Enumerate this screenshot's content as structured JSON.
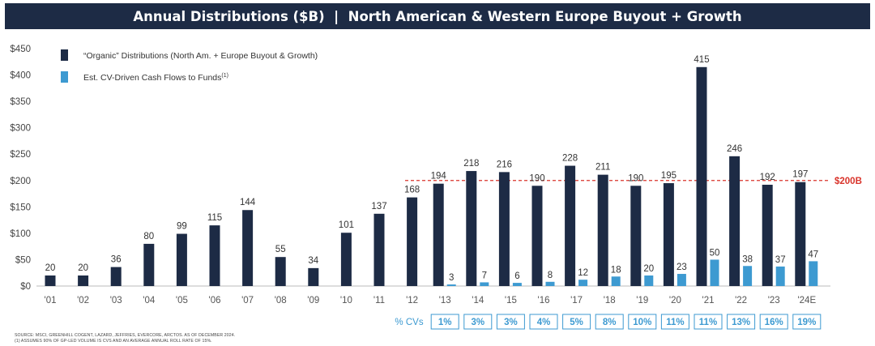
{
  "title": "Annual Distributions ($B)  |  North American & Western Europe Buyout + Growth",
  "colors": {
    "header_bg": "#1d2b45",
    "organic": "#1d2b45",
    "cv": "#3d9ad1",
    "threshold": "#d9342b",
    "cv_box": "#3d9ad1"
  },
  "chart_data": {
    "type": "bar",
    "categories": [
      "'01",
      "'02",
      "'03",
      "'04",
      "'05",
      "'06",
      "'07",
      "'08",
      "'09",
      "'10",
      "'11",
      "'12",
      "'13",
      "'14",
      "'15",
      "'16",
      "'17",
      "'18",
      "'19",
      "'20",
      "'21",
      "'22",
      "'23",
      "'24E"
    ],
    "series": [
      {
        "name": "“Organic” Distributions (North Am. + Europe Buyout & Growth)",
        "values": [
          20,
          20,
          36,
          80,
          99,
          115,
          144,
          55,
          34,
          101,
          137,
          168,
          194,
          218,
          216,
          190,
          228,
          211,
          190,
          195,
          415,
          246,
          192,
          197
        ]
      },
      {
        "name": "Est. CV-Driven Cash Flows to Funds",
        "name_superscript": "(1)",
        "values": [
          null,
          null,
          null,
          null,
          null,
          null,
          null,
          null,
          null,
          null,
          null,
          null,
          3,
          7,
          6,
          8,
          12,
          18,
          20,
          23,
          50,
          38,
          37,
          47
        ]
      }
    ],
    "ylim": [
      0,
      450
    ],
    "yticks": [
      "$0",
      "$50",
      "$100",
      "$150",
      "$200",
      "$250",
      "$300",
      "$350",
      "$400",
      "$450"
    ],
    "ytick_values": [
      0,
      50,
      100,
      150,
      200,
      250,
      300,
      350,
      400,
      450
    ],
    "threshold": {
      "value": 200,
      "label": "$200B"
    },
    "cv_pct_label": "% CVs",
    "cv_pct": {
      "categories": [
        "'13",
        "'14",
        "'15",
        "'16",
        "'17",
        "'18",
        "'19",
        "'20",
        "'21",
        "'22",
        "'23",
        "'24E"
      ],
      "values": [
        "1%",
        "3%",
        "3%",
        "4%",
        "5%",
        "8%",
        "10%",
        "11%",
        "11%",
        "13%",
        "16%",
        "19%"
      ]
    },
    "legend_position": "top-left"
  },
  "footnotes": [
    "SOURCE: MSCI, GREENHILL COGENT, LAZARD, JEFFRIES, EVERCORE, ARCTOS. AS OF DECEMBER 2024.",
    "(1)  ASSUMES 90% OF GP-LED VOLUME IS CVS AND AN AVERAGE ANNUAL ROLL RATE OF 15%."
  ]
}
